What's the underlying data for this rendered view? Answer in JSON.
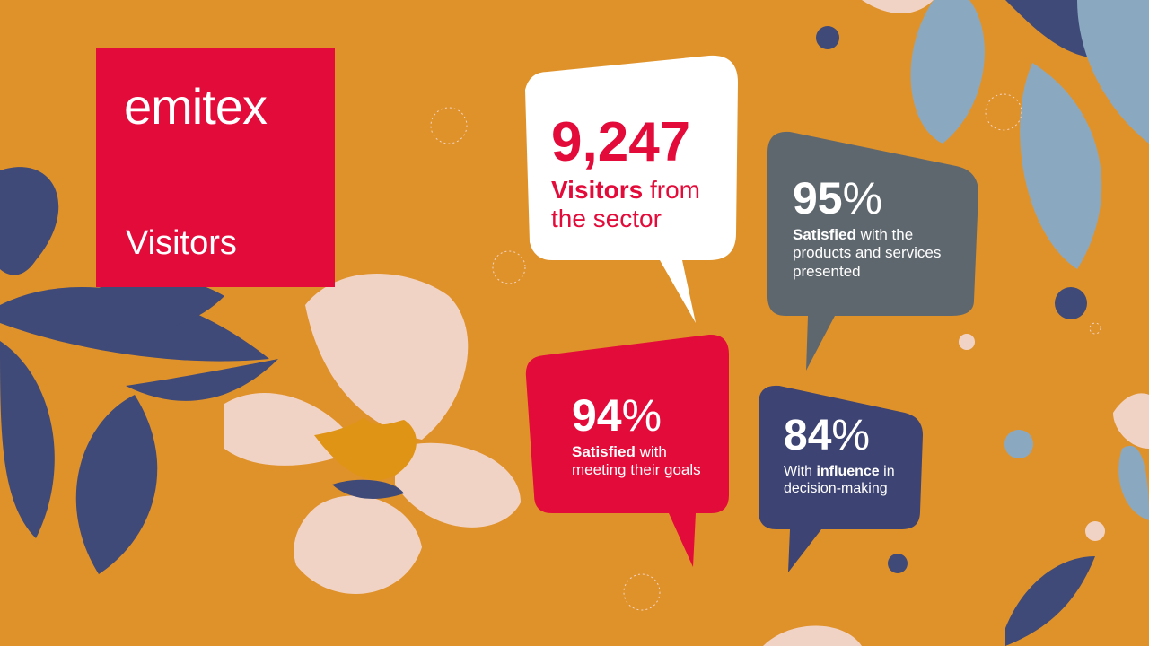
{
  "logo": "emitex",
  "title": "Visitors",
  "stats": [
    {
      "number": "9,247",
      "unit": null,
      "text": [
        {
          "t": "Visitors",
          "bold": true
        },
        {
          "t": "from the sector",
          "bold": false
        }
      ]
    },
    {
      "number": "95",
      "unit": "%",
      "text": [
        {
          "t": "Satisfied",
          "bold": true
        },
        {
          "t": "with the products and services presented",
          "bold": false
        }
      ]
    },
    {
      "number": "94",
      "unit": "%",
      "text": [
        {
          "t": "Satisfied",
          "bold": true
        },
        {
          "t": "with meeting their goals",
          "bold": false
        }
      ]
    },
    {
      "number": "84",
      "unit": "%",
      "text": [
        {
          "t": "With",
          "bold": false
        },
        {
          "t": "influence",
          "bold": true
        },
        {
          "t": "in decision-making",
          "bold": false
        }
      ]
    }
  ]
}
